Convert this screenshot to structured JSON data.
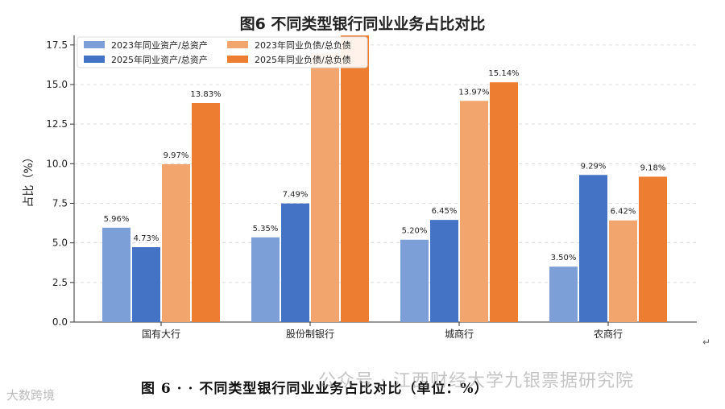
{
  "chart_data": {
    "type": "bar",
    "title": "图6  不同类型银行同业业务占比对比",
    "ylabel": "占比（%）",
    "xlabel": "",
    "categories": [
      "国有大行",
      "股份制银行",
      "城商行",
      "农商行"
    ],
    "ylim": [
      0,
      18
    ],
    "yticks": [
      "0.0",
      "2.5",
      "5.0",
      "7.5",
      "10.0",
      "12.5",
      "15.0",
      "17.5"
    ],
    "grid": "horizontal dashed",
    "legend_position": "top-left",
    "series": [
      {
        "name": "2023年同业资产/总资产",
        "color": "#7c9fd8",
        "values": [
          5.96,
          5.35,
          5.2,
          3.5
        ],
        "labels": [
          "5.96%",
          "5.35%",
          "5.20%",
          "3.50%"
        ]
      },
      {
        "name": "2025年同业资产/总资产",
        "color": "#4472c4",
        "values": [
          4.73,
          7.49,
          6.45,
          9.29
        ],
        "labels": [
          "4.73%",
          "7.49%",
          "6.45%",
          "9.29%"
        ]
      },
      {
        "name": "2023年同业负债/总负债",
        "color": "#f2a66e",
        "values": [
          9.97,
          17.0,
          13.97,
          6.42
        ],
        "labels": [
          "9.97%",
          "",
          "13.97%",
          "6.42%"
        ]
      },
      {
        "name": "2025年同业负债/总负债",
        "color": "#ed7d31",
        "values": [
          13.83,
          18.1,
          15.14,
          9.18
        ],
        "labels": [
          "13.83%",
          "",
          "15.14%",
          "9.18%"
        ]
      }
    ]
  },
  "caption": "图 6 · · 不同类型银行同业业务占比对比（单位：%）",
  "watermark_main": "公众号 · 江西财经大学九银票据研究院",
  "watermark_corner": "大数跨境"
}
